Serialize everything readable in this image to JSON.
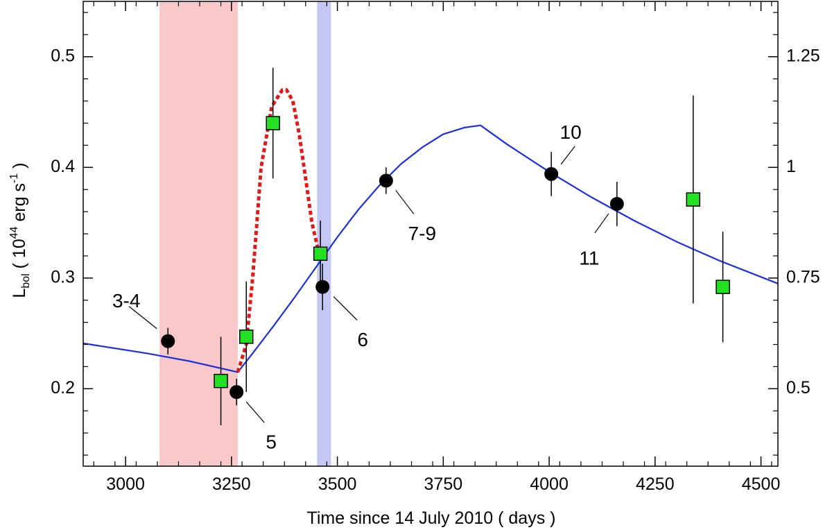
{
  "chart_data": {
    "type": "scatter",
    "xlabel": "Time since 14 July 2010 ( days )",
    "ylabel": {
      "main": "L",
      "sub": "bol",
      "open": " ( 10",
      "exp": "44",
      "mid": " erg s",
      "exp2": "-1",
      "close": " )"
    },
    "xlim": [
      2900,
      4540
    ],
    "ylim": [
      0.13,
      0.55
    ],
    "y2lim": [
      0.325,
      1.375
    ],
    "x_ticks": [
      3000,
      3250,
      3500,
      3750,
      4000,
      4250,
      4500
    ],
    "x_tick_labels": [
      "3000",
      "3250",
      "3500",
      "3750",
      "4000",
      "4250",
      "4500"
    ],
    "y_ticks": [
      0.2,
      0.3,
      0.4,
      0.5
    ],
    "y_tick_labels": [
      "0.2",
      "0.3",
      "0.4",
      "0.5"
    ],
    "y2_ticks": [
      0.5,
      0.75,
      1.0,
      1.25
    ],
    "y2_tick_labels": [
      "0.5",
      "0.75",
      "1",
      "1.25"
    ],
    "grid": false,
    "shaded_regions": [
      {
        "x": [
          3080,
          3265
        ],
        "color": "#f9c8c8"
      },
      {
        "x": [
          3452,
          3485
        ],
        "color": "#c4c7f3"
      }
    ],
    "series": [
      {
        "marker": "circle",
        "color": "#000000",
        "x": [
          3100,
          3262,
          3465,
          3615,
          4005,
          4160
        ],
        "y": [
          0.243,
          0.197,
          0.292,
          0.388,
          0.394,
          0.367
        ],
        "err": [
          0.012,
          0.012,
          0.021,
          0.012,
          0.02,
          0.02
        ],
        "labels": [
          "3-4",
          "5",
          "6",
          "7-9",
          "10",
          "11"
        ]
      },
      {
        "marker": "square",
        "color": "#22e022",
        "x": [
          3225,
          3285,
          3348,
          3460,
          4340,
          4410
        ],
        "y": [
          0.207,
          0.247,
          0.44,
          0.322,
          0.371,
          0.292
        ],
        "err": [
          0.04,
          0.05,
          0.05,
          0.03,
          0.094,
          0.05
        ]
      },
      {
        "type": "line",
        "color": "#1a2fe0",
        "x": [
          2900,
          3050,
          3150,
          3265,
          3300,
          3350,
          3400,
          3450,
          3500,
          3550,
          3600,
          3650,
          3700,
          3750,
          3800,
          3838,
          3900,
          4000,
          4100,
          4200,
          4300,
          4400,
          4540
        ],
        "y": [
          0.241,
          0.232,
          0.225,
          0.215,
          0.232,
          0.257,
          0.283,
          0.31,
          0.337,
          0.362,
          0.384,
          0.403,
          0.418,
          0.43,
          0.436,
          0.438,
          0.421,
          0.396,
          0.373,
          0.352,
          0.333,
          0.316,
          0.295
        ]
      },
      {
        "type": "line",
        "style": "dotted",
        "color": "#e01a1a",
        "x": [
          3265,
          3285,
          3300,
          3320,
          3345,
          3370,
          3380,
          3395,
          3410,
          3425,
          3440,
          3455
        ],
        "y": [
          0.215,
          0.24,
          0.3,
          0.4,
          0.455,
          0.47,
          0.47,
          0.46,
          0.43,
          0.39,
          0.35,
          0.325
        ]
      }
    ]
  }
}
